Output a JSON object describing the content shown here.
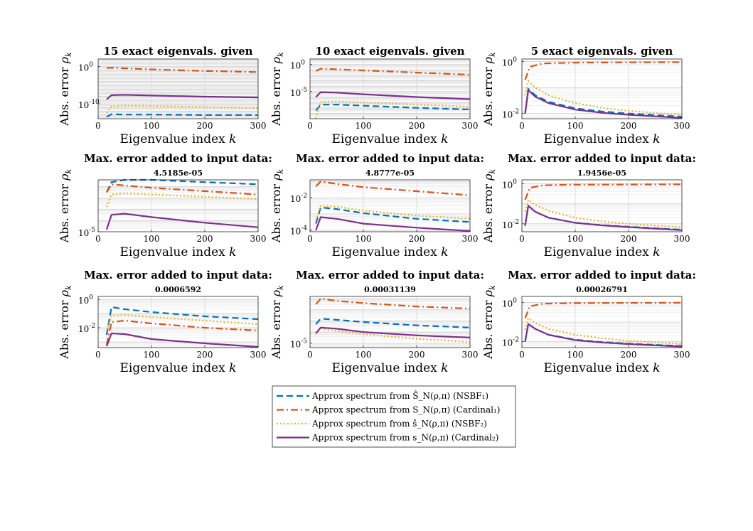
{
  "figure": {
    "legend": [
      {
        "text": "Approx spectrum from Ŝ_N(ρ,π) (NSBF₁)",
        "color": "#0072BD",
        "dash": "dash"
      },
      {
        "text": "Approx spectrum from S_N(ρ,π) (Cardinal₁)",
        "color": "#D95319",
        "dash": "dashdot"
      },
      {
        "text": "Approx spectrum from ŝ_N(ρ,π) (NSBF₂)",
        "color": "#EDB120",
        "dash": "dot"
      },
      {
        "text": "Approx spectrum from s_N(ρ,π) (Cardinal₂)",
        "color": "#7E2F8E",
        "dash": "solid"
      }
    ]
  },
  "chart_data": [
    {
      "type": "line",
      "title": "15 exact eigenvals. given",
      "subtitle": "",
      "xlabel": "Eigenvalue index k",
      "ylabel": "Abs. error ρ_k",
      "xlim": [
        0,
        300
      ],
      "ylim": [
        -14,
        2
      ],
      "xticks": [
        "0",
        "100",
        "200",
        "300"
      ],
      "yticks": [
        {
          "value": 0,
          "label": "10^0"
        },
        {
          "value": -10,
          "label": "10^-10"
        }
      ],
      "series": [
        {
          "name": "NSBF1",
          "x": [
            16,
            25,
            50,
            100,
            200,
            300
          ],
          "values": [
            -13.5,
            -12.8,
            -12.9,
            -12.9,
            -13.0,
            -13.0
          ]
        },
        {
          "name": "Cardinal1",
          "x": [
            16,
            25,
            50,
            100,
            200,
            300
          ],
          "values": [
            -0.4,
            -0.3,
            -0.5,
            -0.8,
            -1.2,
            -1.5
          ]
        },
        {
          "name": "NSBF2",
          "x": [
            16,
            25,
            50,
            100,
            200,
            300
          ],
          "values": [
            -12.5,
            -10.7,
            -10.5,
            -10.6,
            -10.9,
            -11.1
          ]
        },
        {
          "name": "Cardinal2",
          "x": [
            16,
            25,
            50,
            100,
            200,
            300
          ],
          "values": [
            -8.8,
            -7.7,
            -7.6,
            -7.8,
            -8.1,
            -8.3
          ]
        }
      ]
    },
    {
      "type": "line",
      "title": "10 exact eigenvals. given",
      "subtitle": "",
      "xlabel": "Eigenvalue index k",
      "ylabel": "Abs. error ρ_k",
      "xlim": [
        0,
        300
      ],
      "ylim": [
        -10,
        1
      ],
      "xticks": [
        "0",
        "100",
        "200",
        "300"
      ],
      "yticks": [
        {
          "value": 0,
          "label": "10^0"
        },
        {
          "value": -5,
          "label": "10^-5"
        }
      ],
      "series": [
        {
          "name": "NSBF1",
          "x": [
            11,
            20,
            50,
            100,
            200,
            300
          ],
          "values": [
            -8.5,
            -7.4,
            -7.4,
            -7.6,
            -8.0,
            -8.3
          ]
        },
        {
          "name": "Cardinal1",
          "x": [
            11,
            20,
            50,
            100,
            200,
            300
          ],
          "values": [
            -1.2,
            -0.8,
            -0.9,
            -1.1,
            -1.5,
            -1.9
          ]
        },
        {
          "name": "NSBF2",
          "x": [
            11,
            20,
            50,
            100,
            200,
            300
          ],
          "values": [
            -10.0,
            -6.9,
            -6.8,
            -7.0,
            -7.4,
            -7.8
          ]
        },
        {
          "name": "Cardinal2",
          "x": [
            11,
            20,
            50,
            100,
            200,
            300
          ],
          "values": [
            -6.0,
            -5.1,
            -5.2,
            -5.5,
            -6.0,
            -6.4
          ]
        }
      ]
    },
    {
      "type": "line",
      "title": "5 exact eigenvals. given",
      "subtitle": "",
      "xlabel": "Eigenvalue index k",
      "ylabel": "Abs. error ρ_k",
      "xlim": [
        0,
        300
      ],
      "ylim": [
        -2.2,
        0.1
      ],
      "xticks": [
        "0",
        "100",
        "200",
        "300"
      ],
      "yticks": [
        {
          "value": 0,
          "label": "10^0"
        },
        {
          "value": -2,
          "label": "10^-2"
        }
      ],
      "series": [
        {
          "name": "NSBF1",
          "x": [
            6,
            12,
            25,
            50,
            100,
            150,
            200,
            300
          ],
          "values": [
            -2.0,
            -1.05,
            -1.3,
            -1.55,
            -1.8,
            -1.92,
            -2.0,
            -2.12
          ]
        },
        {
          "name": "Cardinal1",
          "x": [
            6,
            15,
            40,
            100,
            200,
            300
          ],
          "values": [
            -0.7,
            -0.2,
            -0.07,
            -0.04,
            -0.03,
            -0.02
          ]
        },
        {
          "name": "NSBF2",
          "x": [
            6,
            12,
            25,
            50,
            100,
            150,
            200,
            300
          ],
          "values": [
            -1.3,
            -0.75,
            -1.0,
            -1.3,
            -1.6,
            -1.78,
            -1.9,
            -2.05
          ]
        },
        {
          "name": "Cardinal2",
          "x": [
            6,
            12,
            25,
            50,
            100,
            150,
            200,
            300
          ],
          "values": [
            -2.0,
            -1.1,
            -1.35,
            -1.6,
            -1.85,
            -1.97,
            -2.05,
            -2.17
          ]
        }
      ]
    },
    {
      "type": "line",
      "title": "Max. error added to input data:",
      "subtitle": "4.5185e-05",
      "xlabel": "Eigenvalue index k",
      "ylabel": "Abs. error ρ_k",
      "xlim": [
        0,
        300
      ],
      "ylim": [
        -5,
        -0.4
      ],
      "xticks": [
        "0",
        "100",
        "200",
        "300"
      ],
      "yticks": [
        {
          "value": -5,
          "label": "10^-5"
        }
      ],
      "series": [
        {
          "name": "NSBF1",
          "x": [
            16,
            25,
            50,
            100,
            200,
            300
          ],
          "values": [
            -1.5,
            -0.6,
            -0.4,
            -0.4,
            -0.6,
            -0.8
          ]
        },
        {
          "name": "Cardinal1",
          "x": [
            16,
            25,
            50,
            100,
            200,
            300
          ],
          "values": [
            -1.5,
            -0.8,
            -0.9,
            -1.1,
            -1.4,
            -1.7
          ]
        },
        {
          "name": "NSBF2",
          "x": [
            16,
            25,
            50,
            100,
            200,
            300
          ],
          "values": [
            -2.8,
            -1.7,
            -1.6,
            -1.7,
            -1.9,
            -2.1
          ]
        },
        {
          "name": "Cardinal2",
          "x": [
            16,
            25,
            50,
            100,
            200,
            300
          ],
          "values": [
            -4.8,
            -3.5,
            -3.4,
            -3.7,
            -4.2,
            -4.6
          ]
        }
      ]
    },
    {
      "type": "line",
      "title": "Max. error added to input data:",
      "subtitle": "4.8777e-05",
      "xlabel": "Eigenvalue index k",
      "ylabel": "Abs. error ρ_k",
      "xlim": [
        0,
        300
      ],
      "ylim": [
        -4.1,
        -0.9
      ],
      "xticks": [
        "0",
        "100",
        "200",
        "300"
      ],
      "yticks": [
        {
          "value": -2,
          "label": "10^-2"
        },
        {
          "value": -4,
          "label": "10^-4"
        }
      ],
      "series": [
        {
          "name": "NSBF1",
          "x": [
            11,
            20,
            50,
            100,
            200,
            300
          ],
          "values": [
            -3.6,
            -2.6,
            -2.7,
            -2.95,
            -3.3,
            -3.5
          ]
        },
        {
          "name": "Cardinal1",
          "x": [
            11,
            20,
            50,
            100,
            200,
            300
          ],
          "values": [
            -1.3,
            -1.0,
            -1.15,
            -1.35,
            -1.6,
            -1.85
          ]
        },
        {
          "name": "NSBF2",
          "x": [
            11,
            20,
            50,
            100,
            200,
            300
          ],
          "values": [
            -3.4,
            -2.5,
            -2.55,
            -2.8,
            -3.1,
            -3.3
          ]
        },
        {
          "name": "Cardinal2",
          "x": [
            11,
            20,
            50,
            100,
            200,
            300
          ],
          "values": [
            -4.0,
            -3.2,
            -3.3,
            -3.6,
            -3.85,
            -4.05
          ]
        }
      ]
    },
    {
      "type": "line",
      "title": "Max. error added to input data:",
      "subtitle": "1.9456e-05",
      "xlabel": "Eigenvalue index k",
      "ylabel": "Abs. error ρ_k",
      "xlim": [
        0,
        300
      ],
      "ylim": [
        -2.4,
        0.2
      ],
      "xticks": [
        "0",
        "100",
        "200",
        "300"
      ],
      "yticks": [
        {
          "value": 0,
          "label": "10^0"
        },
        {
          "value": -2,
          "label": "10^-2"
        }
      ],
      "series": [
        {
          "name": "NSBF1",
          "x": [
            6,
            12,
            25,
            50,
            100,
            150,
            200,
            300
          ],
          "values": [
            -2.1,
            -1.1,
            -1.4,
            -1.7,
            -1.95,
            -2.07,
            -2.15,
            -2.3
          ]
        },
        {
          "name": "Cardinal1",
          "x": [
            6,
            15,
            40,
            100,
            200,
            300
          ],
          "values": [
            -0.8,
            -0.2,
            -0.07,
            -0.04,
            -0.03,
            -0.02
          ]
        },
        {
          "name": "NSBF2",
          "x": [
            6,
            12,
            25,
            50,
            100,
            150,
            200,
            300
          ],
          "values": [
            -1.4,
            -0.8,
            -1.05,
            -1.35,
            -1.7,
            -1.88,
            -2.0,
            -2.18
          ]
        },
        {
          "name": "Cardinal2",
          "x": [
            6,
            12,
            25,
            50,
            100,
            150,
            200,
            300
          ],
          "values": [
            -2.1,
            -1.1,
            -1.4,
            -1.7,
            -1.95,
            -2.08,
            -2.17,
            -2.32
          ]
        }
      ]
    },
    {
      "type": "line",
      "title": "Max. error added to input data:",
      "subtitle": "0.0006592",
      "xlabel": "Eigenvalue index k",
      "ylabel": "Abs. error ρ_k",
      "xlim": [
        0,
        300
      ],
      "ylim": [
        -3.4,
        0.2
      ],
      "xticks": [
        "0",
        "100",
        "200",
        "300"
      ],
      "yticks": [
        {
          "value": 0,
          "label": "10^0"
        },
        {
          "value": -2,
          "label": "10^-2"
        }
      ],
      "series": [
        {
          "name": "NSBF1",
          "x": [
            16,
            25,
            50,
            100,
            200,
            300
          ],
          "values": [
            -2.5,
            -0.55,
            -0.7,
            -0.9,
            -1.2,
            -1.4
          ]
        },
        {
          "name": "Cardinal1",
          "x": [
            16,
            25,
            50,
            100,
            200,
            300
          ],
          "values": [
            -3.2,
            -1.6,
            -1.5,
            -1.7,
            -2.0,
            -2.2
          ]
        },
        {
          "name": "NSBF2",
          "x": [
            16,
            25,
            50,
            100,
            200,
            300
          ],
          "values": [
            -2.2,
            -1.15,
            -1.1,
            -1.25,
            -1.5,
            -1.75
          ]
        },
        {
          "name": "Cardinal2",
          "x": [
            16,
            25,
            50,
            100,
            200,
            300
          ],
          "values": [
            -3.3,
            -2.4,
            -2.45,
            -2.8,
            -3.1,
            -3.35
          ]
        }
      ]
    },
    {
      "type": "line",
      "title": "Max. error added to input data:",
      "subtitle": "0.00031139",
      "xlabel": "Eigenvalue index k",
      "ylabel": "Abs. error ρ_k",
      "xlim": [
        0,
        300
      ],
      "ylim": [
        -5.4,
        -0.8
      ],
      "xticks": [
        "0",
        "100",
        "200",
        "300"
      ],
      "yticks": [
        {
          "value": -5,
          "label": "10^-5"
        }
      ],
      "series": [
        {
          "name": "NSBF1",
          "x": [
            11,
            20,
            50,
            100,
            200,
            300
          ],
          "values": [
            -3.3,
            -2.8,
            -2.9,
            -3.1,
            -3.4,
            -3.6
          ]
        },
        {
          "name": "Cardinal1",
          "x": [
            11,
            20,
            50,
            100,
            200,
            300
          ],
          "values": [
            -1.5,
            -1.0,
            -1.2,
            -1.4,
            -1.7,
            -1.9
          ]
        },
        {
          "name": "NSBF2",
          "x": [
            11,
            20,
            50,
            100,
            200,
            300
          ],
          "values": [
            -4.2,
            -3.7,
            -3.9,
            -4.2,
            -4.6,
            -4.9
          ]
        },
        {
          "name": "Cardinal2",
          "x": [
            11,
            20,
            50,
            100,
            200,
            300
          ],
          "values": [
            -4.1,
            -3.6,
            -3.7,
            -4.0,
            -4.3,
            -4.5
          ]
        }
      ]
    },
    {
      "type": "line",
      "title": "Max. error added to input data:",
      "subtitle": "0.00026791",
      "xlabel": "Eigenvalue index k",
      "ylabel": "Abs. error ρ_k",
      "xlim": [
        0,
        300
      ],
      "ylim": [
        -2.3,
        0.3
      ],
      "xticks": [
        "0",
        "100",
        "200",
        "300"
      ],
      "yticks": [
        {
          "value": 0,
          "label": "10^0"
        },
        {
          "value": -2,
          "label": "10^-2"
        }
      ],
      "series": [
        {
          "name": "NSBF1",
          "x": [
            6,
            12,
            25,
            50,
            100,
            150,
            200,
            300
          ],
          "values": [
            -2.0,
            -1.1,
            -1.35,
            -1.65,
            -1.9,
            -2.02,
            -2.1,
            -2.22
          ]
        },
        {
          "name": "Cardinal1",
          "x": [
            6,
            15,
            40,
            100,
            200,
            300
          ],
          "values": [
            -0.8,
            -0.2,
            -0.07,
            -0.04,
            -0.03,
            -0.02
          ]
        },
        {
          "name": "NSBF2",
          "x": [
            6,
            12,
            25,
            50,
            100,
            150,
            200,
            300
          ],
          "values": [
            -1.4,
            -0.8,
            -1.05,
            -1.35,
            -1.65,
            -1.82,
            -1.95,
            -2.12
          ]
        },
        {
          "name": "Cardinal2",
          "x": [
            6,
            12,
            25,
            50,
            100,
            150,
            200,
            300
          ],
          "values": [
            -2.0,
            -1.1,
            -1.35,
            -1.65,
            -1.92,
            -2.04,
            -2.12,
            -2.25
          ]
        }
      ]
    }
  ]
}
